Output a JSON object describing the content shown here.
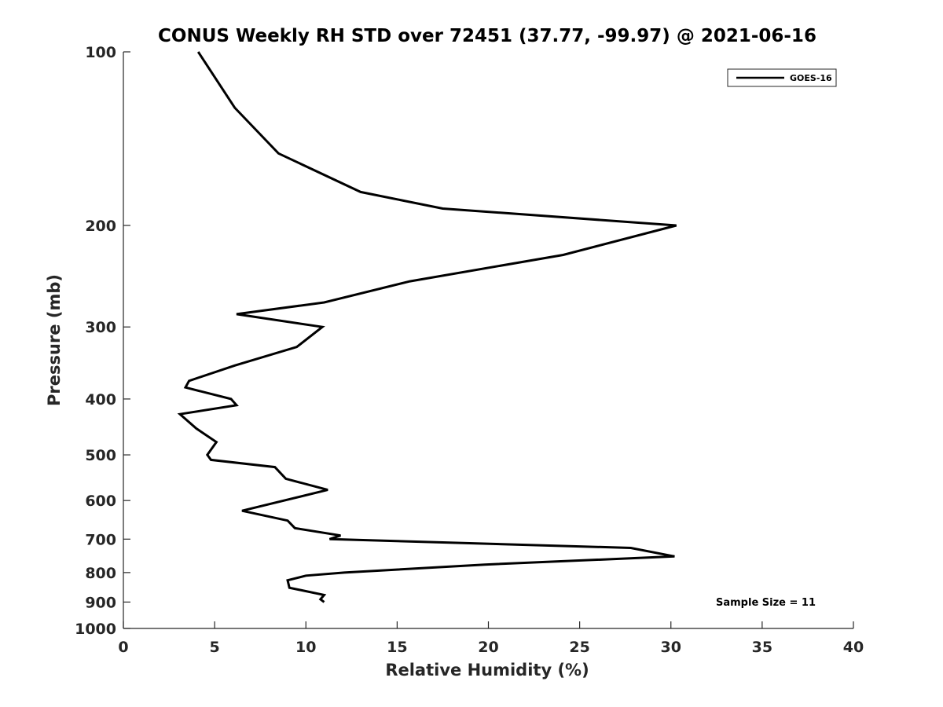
{
  "chart_data": {
    "type": "line",
    "title": "CONUS Weekly RH STD over 72451 (37.77, -99.97) @ 2021-06-16",
    "xlabel": "Relative Humidity (%)",
    "ylabel": "Pressure (mb)",
    "xlim": [
      0,
      40
    ],
    "ylim": [
      100,
      1000
    ],
    "yscale": "log",
    "y_reversed": true,
    "grid": false,
    "legend_location": "top-right",
    "x_ticks": [
      0,
      5,
      10,
      15,
      20,
      25,
      30,
      35,
      40
    ],
    "x_tick_labels": [
      "0",
      "5",
      "10",
      "15",
      "20",
      "25",
      "30",
      "35",
      "40"
    ],
    "y_ticks": [
      100,
      200,
      300,
      400,
      500,
      600,
      700,
      800,
      900,
      1000
    ],
    "y_tick_labels": [
      "100",
      "200",
      "300",
      "400",
      "500",
      "600",
      "700",
      "800",
      "900",
      "1000"
    ],
    "series": [
      {
        "name": "GOES-16",
        "color": "#000000",
        "points": [
          {
            "x": 4.1,
            "p": 100
          },
          {
            "x": 6.1,
            "p": 125
          },
          {
            "x": 8.5,
            "p": 150
          },
          {
            "x": 13.0,
            "p": 175
          },
          {
            "x": 17.5,
            "p": 187
          },
          {
            "x": 30.3,
            "p": 200
          },
          {
            "x": 24.1,
            "p": 225
          },
          {
            "x": 15.7,
            "p": 250
          },
          {
            "x": 11.0,
            "p": 272
          },
          {
            "x": 6.2,
            "p": 285
          },
          {
            "x": 10.9,
            "p": 300
          },
          {
            "x": 9.5,
            "p": 325
          },
          {
            "x": 6.1,
            "p": 350
          },
          {
            "x": 3.6,
            "p": 372
          },
          {
            "x": 3.4,
            "p": 382
          },
          {
            "x": 5.9,
            "p": 400
          },
          {
            "x": 6.2,
            "p": 410
          },
          {
            "x": 3.1,
            "p": 425
          },
          {
            "x": 4.0,
            "p": 450
          },
          {
            "x": 5.1,
            "p": 475
          },
          {
            "x": 4.6,
            "p": 500
          },
          {
            "x": 4.8,
            "p": 510
          },
          {
            "x": 8.3,
            "p": 525
          },
          {
            "x": 8.9,
            "p": 550
          },
          {
            "x": 11.2,
            "p": 575
          },
          {
            "x": 6.5,
            "p": 625
          },
          {
            "x": 9.0,
            "p": 650
          },
          {
            "x": 9.4,
            "p": 670
          },
          {
            "x": 11.9,
            "p": 690
          },
          {
            "x": 11.3,
            "p": 700
          },
          {
            "x": 27.8,
            "p": 725
          },
          {
            "x": 30.2,
            "p": 750
          },
          {
            "x": 19.8,
            "p": 775
          },
          {
            "x": 12.1,
            "p": 800
          },
          {
            "x": 10.0,
            "p": 810
          },
          {
            "x": 9.0,
            "p": 825
          },
          {
            "x": 9.1,
            "p": 850
          },
          {
            "x": 11.0,
            "p": 875
          },
          {
            "x": 10.8,
            "p": 890
          },
          {
            "x": 11.0,
            "p": 900
          }
        ]
      }
    ],
    "legend": [
      "GOES-16"
    ],
    "annotations": [
      "Sample Size = 11"
    ]
  }
}
